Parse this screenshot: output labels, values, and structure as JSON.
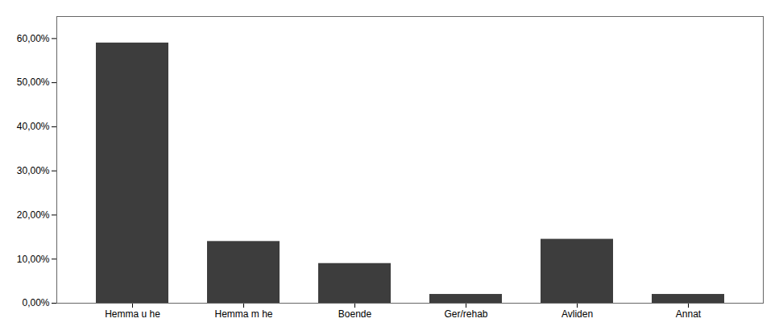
{
  "chart_data": {
    "type": "bar",
    "categories": [
      "Hemma u he",
      "Hemma m he",
      "Boende",
      "Ger/rehab",
      "Avliden",
      "Annat"
    ],
    "values": [
      0.59,
      0.14,
      0.09,
      0.02,
      0.145,
      0.02
    ],
    "color": "#3d3d3d",
    "ylim": [
      0,
      0.65
    ],
    "yticks": [
      {
        "value": 0.0,
        "label": "0,00%"
      },
      {
        "value": 0.1,
        "label": "10,00%"
      },
      {
        "value": 0.2,
        "label": "20,00%"
      },
      {
        "value": 0.3,
        "label": "30,00%"
      },
      {
        "value": 0.4,
        "label": "40,00%"
      },
      {
        "value": 0.5,
        "label": "50,00%"
      },
      {
        "value": 0.6,
        "label": "60,00%"
      }
    ],
    "grid": false
  }
}
